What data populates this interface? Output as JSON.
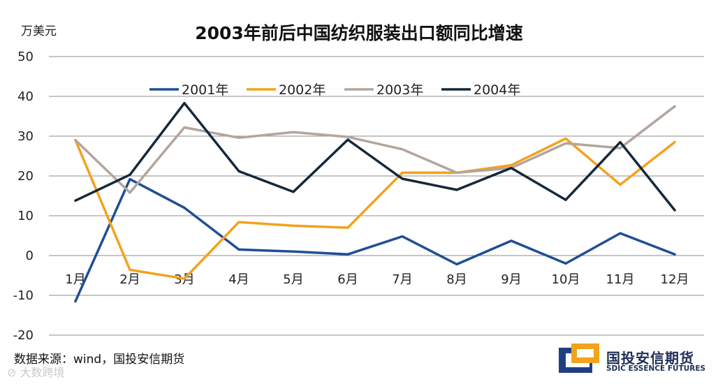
{
  "unit_label": "万美元",
  "source_text": "数据来源：wind，国投安信期货",
  "logo": {
    "name": "国投安信期货",
    "english": "SDIC ESSENCE FUTURES"
  },
  "watermark": "⊘ 大数跨境",
  "chart_data": {
    "type": "line",
    "title": "2003年前后中国纺织服装出口额同比增速",
    "ylabel": "万美元",
    "xlabel": "",
    "ylim": [
      -20,
      50
    ],
    "yticks": [
      50,
      40,
      30,
      20,
      10,
      0,
      -10,
      -20
    ],
    "grid": true,
    "legend_position": "top-center",
    "categories": [
      "1月",
      "2月",
      "3月",
      "4月",
      "5月",
      "6月",
      "7月",
      "8月",
      "9月",
      "10月",
      "11月",
      "12月"
    ],
    "series": [
      {
        "name": "2001年",
        "color": "#1f4e94",
        "values": [
          -11.5,
          19.2,
          12.0,
          1.5,
          1.0,
          0.3,
          4.8,
          -2.2,
          3.7,
          -2.0,
          5.6,
          0.3
        ]
      },
      {
        "name": "2002年",
        "color": "#f3a21c",
        "values": [
          29.0,
          -3.6,
          -5.8,
          8.4,
          7.5,
          7.0,
          20.8,
          20.8,
          22.7,
          29.4,
          17.8,
          28.5
        ]
      },
      {
        "name": "2003年",
        "color": "#b3a59d",
        "values": [
          29.0,
          15.8,
          32.2,
          29.6,
          31.0,
          29.8,
          26.7,
          20.8,
          22.0,
          28.2,
          27.0,
          37.5
        ]
      },
      {
        "name": "2004年",
        "color": "#15283a",
        "values": [
          13.8,
          20.3,
          38.3,
          21.2,
          16.0,
          29.1,
          19.3,
          16.5,
          22.0,
          14.0,
          28.5,
          11.4
        ]
      }
    ]
  }
}
